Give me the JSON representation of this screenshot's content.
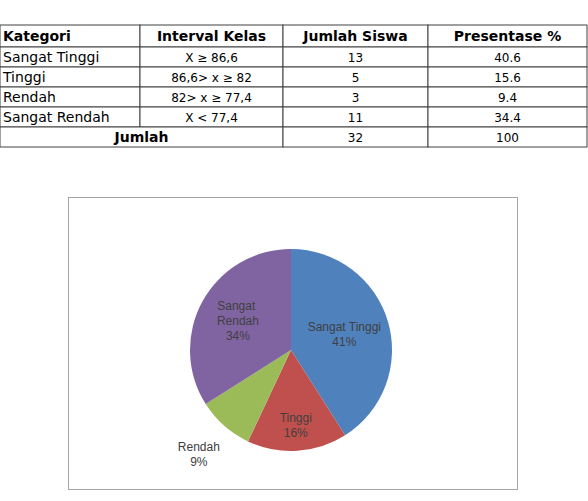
{
  "table": {
    "columns": [
      "Kategori",
      "Interval Kelas",
      "Jumlah Siswa",
      "Presentase %"
    ],
    "rows": [
      [
        "Sangat Tinggi",
        "X ≥ 86,6",
        13,
        40.6
      ],
      [
        "Tinggi",
        "86,6> x ≥ 82",
        5,
        15.6
      ],
      [
        "Rendah",
        "82> x ≥ 77,4",
        3,
        9.4
      ],
      [
        "Sangat Rendah",
        "X < 77,4",
        11,
        34.4
      ]
    ],
    "total": {
      "label": "Jumlah",
      "values": [
        32,
        100
      ]
    }
  },
  "chart_data": {
    "type": "pie",
    "categories": [
      "Sangat Tinggi",
      "Tinggi",
      "Rendah",
      "Sangat Rendah"
    ],
    "values": [
      41,
      16,
      9,
      34
    ],
    "value_labels": [
      "41%",
      "16%",
      "9%",
      "34%"
    ],
    "colors": [
      "#4f81bd",
      "#c0504d",
      "#9bbb59",
      "#8064a2"
    ],
    "data_labels": true
  }
}
